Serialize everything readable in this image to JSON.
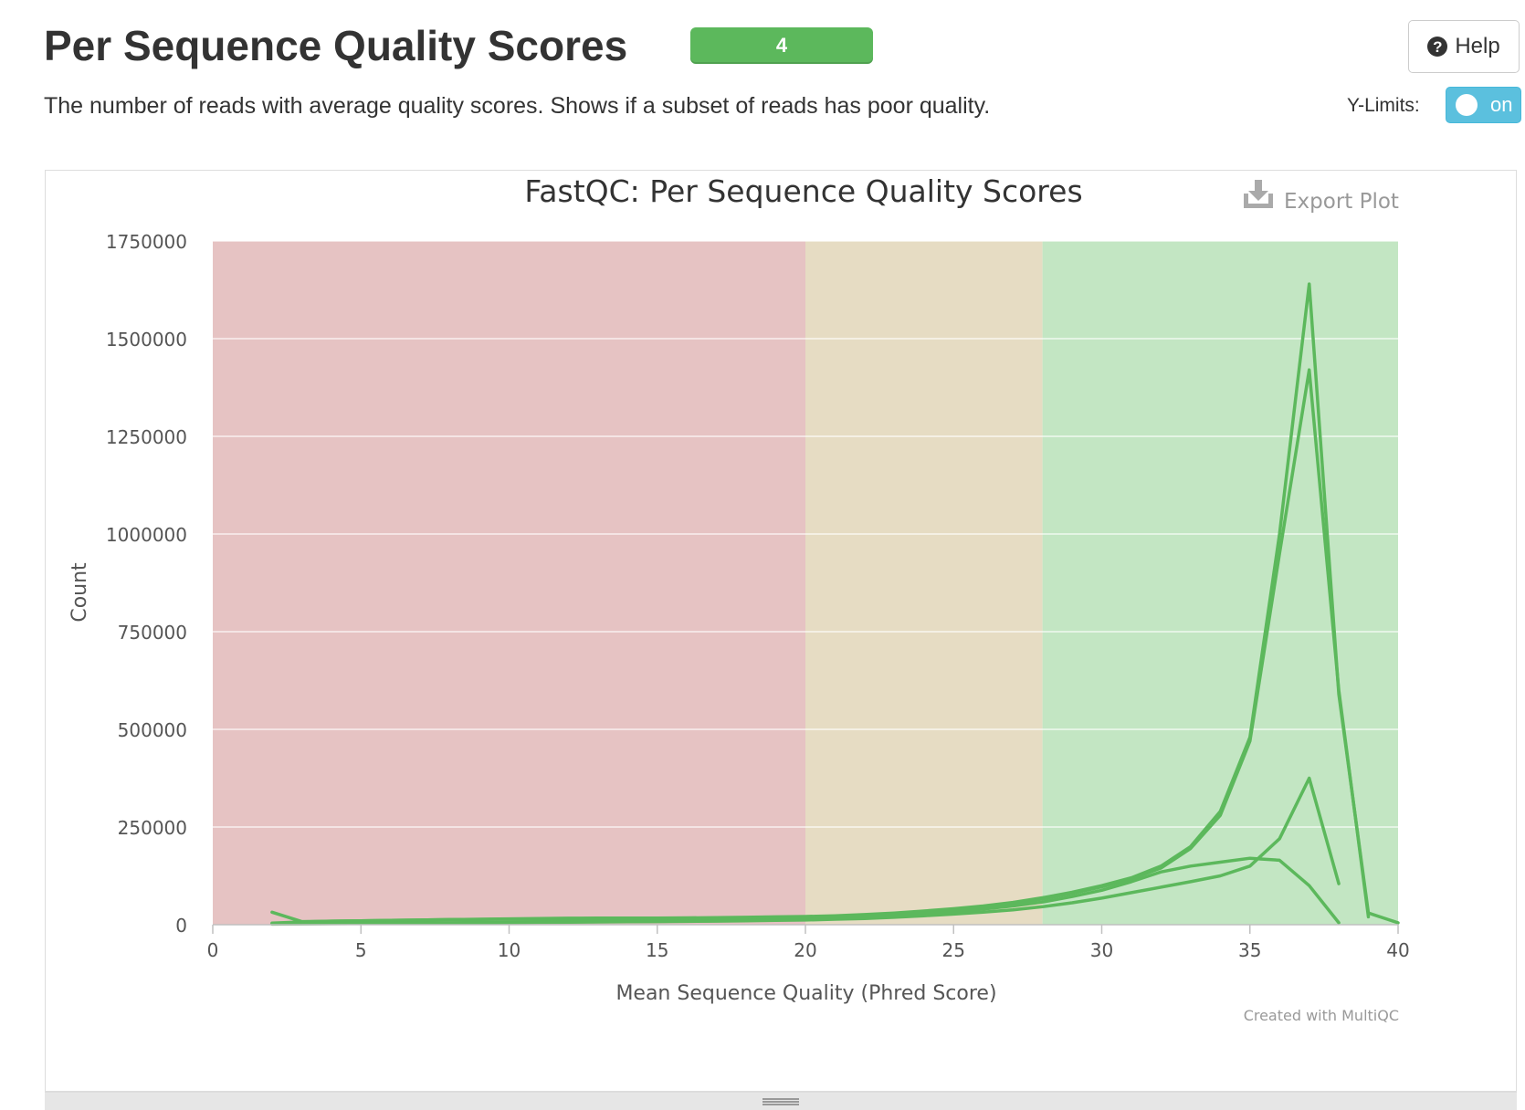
{
  "header": {
    "title": "Per Sequence Quality Scores",
    "badge_count": "4",
    "description": "The number of reads with average quality scores. Shows if a subset of reads has poor quality.",
    "help_label": "Help",
    "ylimits_label": "Y-Limits:",
    "ylimits_toggle": "on"
  },
  "plot": {
    "export_label": "Export Plot",
    "credit": "Created with MultiQC"
  },
  "colors": {
    "line": "#5cb85c",
    "band_fail": "#e6c3c3",
    "band_warn": "#e6dcc3",
    "band_pass": "#c3e6c3",
    "badge": "#5cb85c",
    "toggle": "#5bc0de"
  },
  "chart_data": {
    "type": "line",
    "title": "FastQC: Per Sequence Quality Scores",
    "xlabel": "Mean Sequence Quality (Phred Score)",
    "ylabel": "Count",
    "xlim": [
      0,
      40
    ],
    "ylim": [
      0,
      1750000
    ],
    "xticks": [
      0,
      5,
      10,
      15,
      20,
      25,
      30,
      35,
      40
    ],
    "yticks": [
      0,
      250000,
      500000,
      750000,
      1000000,
      1250000,
      1500000,
      1750000
    ],
    "grid": true,
    "bands": [
      {
        "from": 0,
        "to": 20,
        "status": "fail"
      },
      {
        "from": 20,
        "to": 28,
        "status": "warn"
      },
      {
        "from": 28,
        "to": 40,
        "status": "pass"
      }
    ],
    "series": [
      {
        "x": [
          2,
          3,
          4,
          5,
          6,
          7,
          8,
          9,
          10,
          11,
          12,
          13,
          14,
          15,
          16,
          17,
          18,
          19,
          20,
          21,
          22,
          23,
          24,
          25,
          26,
          27,
          28,
          29,
          30,
          31,
          32,
          33,
          34,
          35,
          36,
          37,
          38,
          39,
          40
        ],
        "values": [
          32000,
          8000,
          9000,
          10000,
          11000,
          12000,
          13000,
          14000,
          15000,
          16000,
          16500,
          17000,
          17000,
          17000,
          17500,
          18000,
          19000,
          20000,
          21000,
          23000,
          26000,
          30000,
          35000,
          41000,
          48000,
          57000,
          69000,
          83000,
          100000,
          120000,
          150000,
          200000,
          290000,
          480000,
          1000000,
          1640000,
          590000,
          30000,
          5000
        ]
      },
      {
        "x": [
          2,
          3,
          4,
          5,
          6,
          7,
          8,
          9,
          10,
          11,
          12,
          13,
          14,
          15,
          16,
          17,
          18,
          19,
          20,
          21,
          22,
          23,
          24,
          25,
          26,
          27,
          28,
          29,
          30,
          31,
          32,
          33,
          34,
          35,
          36,
          37,
          38,
          39
        ],
        "values": [
          4000,
          7000,
          9000,
          10000,
          11000,
          12000,
          13000,
          13500,
          14000,
          14500,
          14500,
          15000,
          15000,
          15000,
          15500,
          16000,
          16500,
          17000,
          18000,
          20000,
          23000,
          27000,
          32000,
          38000,
          45000,
          54000,
          66000,
          80000,
          97000,
          117000,
          145000,
          195000,
          280000,
          470000,
          950000,
          1420000,
          600000,
          20000
        ]
      },
      {
        "x": [
          2,
          3,
          4,
          5,
          6,
          7,
          8,
          9,
          10,
          11,
          12,
          13,
          14,
          15,
          16,
          17,
          18,
          19,
          20,
          21,
          22,
          23,
          24,
          25,
          26,
          27,
          28,
          29,
          30,
          31,
          32,
          33,
          34,
          35,
          36,
          37,
          38
        ],
        "values": [
          2000,
          2500,
          3000,
          3500,
          4000,
          4500,
          5000,
          5500,
          6000,
          6500,
          7000,
          7500,
          8000,
          8500,
          9000,
          10000,
          11000,
          12500,
          14000,
          16000,
          19000,
          23000,
          28000,
          33000,
          40000,
          48000,
          58000,
          72000,
          88000,
          110000,
          135000,
          150000,
          160000,
          170000,
          165000,
          100000,
          5000
        ]
      },
      {
        "x": [
          2,
          3,
          4,
          5,
          6,
          7,
          8,
          9,
          10,
          11,
          12,
          13,
          14,
          15,
          16,
          17,
          18,
          19,
          20,
          21,
          22,
          23,
          24,
          25,
          26,
          27,
          28,
          29,
          30,
          31,
          32,
          33,
          34,
          35,
          36,
          37,
          38
        ],
        "values": [
          1500,
          2000,
          2500,
          3000,
          3500,
          4000,
          4500,
          5000,
          5500,
          6000,
          6500,
          7000,
          7500,
          8000,
          8500,
          9000,
          10000,
          11000,
          12000,
          14000,
          16000,
          19000,
          23000,
          27000,
          32000,
          38000,
          46000,
          56000,
          68000,
          82000,
          96000,
          110000,
          125000,
          150000,
          220000,
          375000,
          105000
        ]
      }
    ]
  }
}
